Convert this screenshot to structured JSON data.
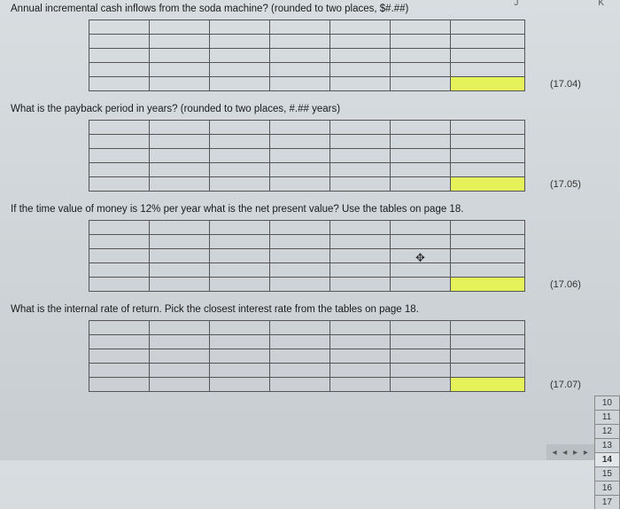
{
  "columnHeaders": {
    "j": "J",
    "k": "K"
  },
  "sections": [
    {
      "question": "Annual incremental cash inflows from the soda machine?  (rounded to two places, $#.##)",
      "answerLabel": "(17.04)",
      "cols": [
        68,
        68,
        68,
        68,
        68,
        68,
        84
      ],
      "rows": 5,
      "highlight": {
        "row": 4,
        "col": 6
      }
    },
    {
      "question": "What is the payback period in years?  (rounded to two places, #.## years)",
      "answerLabel": "(17.05)",
      "cols": [
        68,
        68,
        68,
        68,
        68,
        68,
        84
      ],
      "rows": 5,
      "highlight": {
        "row": 4,
        "col": 6
      }
    },
    {
      "question": "If the time value of money is 12% per year what is the net present value? Use  the tables on page 18.",
      "answerLabel": "(17.06)",
      "cols": [
        68,
        68,
        68,
        68,
        68,
        68,
        84
      ],
      "rows": 5,
      "highlight": {
        "row": 4,
        "col": 6
      },
      "cursor": {
        "row": 2,
        "col": 5
      }
    },
    {
      "question": "What is the internal rate of return.  Pick the closest interest rate from the tables on page 18.",
      "answerLabel": "(17.07)",
      "cols": [
        68,
        68,
        68,
        68,
        68,
        68,
        84
      ],
      "rows": 5,
      "highlight": {
        "row": 4,
        "col": 6
      }
    }
  ],
  "tabs": {
    "scroll": "◂ ◂ ▸ ▸",
    "items": [
      "10",
      "11",
      "12",
      "13",
      "14",
      "15",
      "16",
      "17"
    ],
    "active": "14",
    "prefixDots": "…"
  }
}
